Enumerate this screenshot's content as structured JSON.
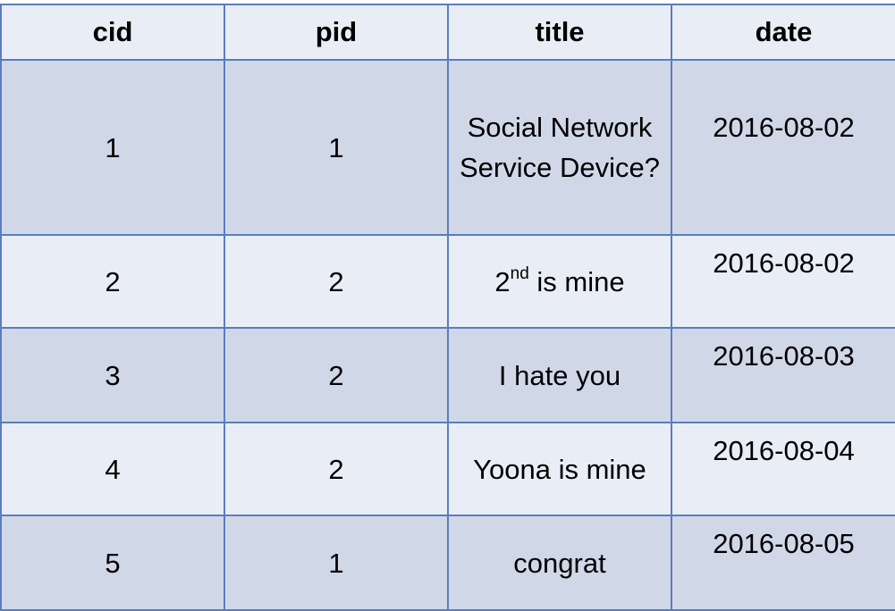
{
  "table": {
    "headers": [
      "cid",
      "pid",
      "title",
      "date"
    ],
    "rows": [
      {
        "cid": "1",
        "pid": "1",
        "title": "Social Network Service Device?",
        "date": "2016-08-02"
      },
      {
        "cid": "2",
        "pid": "2",
        "title_main": "2",
        "title_sup": "nd",
        "title_rest": " is mine",
        "date": "2016-08-02"
      },
      {
        "cid": "3",
        "pid": "2",
        "title": "I hate you",
        "date": "2016-08-03"
      },
      {
        "cid": "4",
        "pid": "2",
        "title": "Yoona is mine",
        "date": "2016-08-04"
      },
      {
        "cid": "5",
        "pid": "1",
        "title": "congrat",
        "date": "2016-08-05"
      }
    ]
  },
  "colors": {
    "border": "#5b7cbd",
    "header_bg": "#e9eef6",
    "row_dark": "#d0d8e8",
    "row_light": "#e9eef6"
  }
}
